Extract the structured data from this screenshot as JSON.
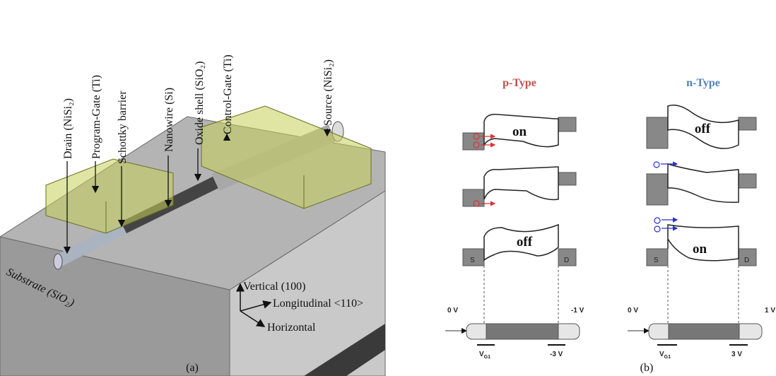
{
  "panel_a": {
    "callouts": [
      "Drain (NiSi₂)",
      "Program-Gate (Ti)",
      "Schottky barrier",
      "Nanowire (Si)",
      "Oxide shell (SiO₂)",
      "Control-Gate (Ti)",
      "Source (NiSi₂)"
    ],
    "substrate": "Substrate (SiO₂)",
    "axes": {
      "vertical": "Vertical (100)",
      "longitudinal": "Longitudinal <110>",
      "horizontal": "Horizontal"
    },
    "caption": "(a)"
  },
  "panel_b": {
    "p_type": {
      "title": "p-Type",
      "state_top": "on",
      "state_bottom": "off",
      "source": "S",
      "drain": "D",
      "source_voltage": "0 V",
      "drain_voltage": "-1 V",
      "gate1": {
        "main": "V",
        "sub": "G1"
      },
      "gate2": "-3 V"
    },
    "n_type": {
      "title": "n-Type",
      "state_top": "off",
      "state_bottom": "on",
      "source": "S",
      "drain": "D",
      "source_voltage": "0 V",
      "drain_voltage": "1 V",
      "gate1": {
        "main": "V",
        "sub": "G1"
      },
      "gate2": "3 V"
    },
    "caption": "(b)"
  }
}
